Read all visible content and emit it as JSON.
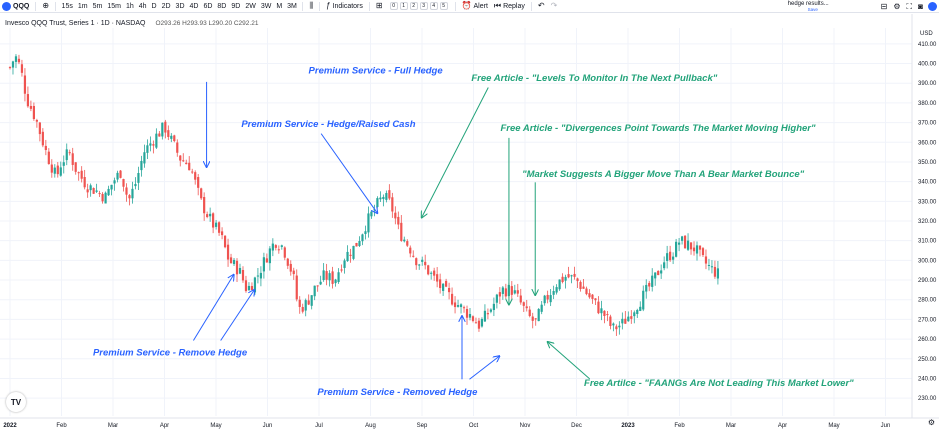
{
  "toolbar": {
    "symbol": "QQQ",
    "intervals": [
      "15s",
      "1m",
      "5m",
      "15m",
      "1h",
      "4h",
      "D",
      "2D",
      "3D",
      "4D",
      "6D",
      "8D",
      "9D",
      "2W",
      "3W",
      "M",
      "3M"
    ],
    "indicators_label": "Indicators",
    "layout_numbers": [
      "0",
      "1",
      "2",
      "3",
      "4",
      "5"
    ],
    "alert_label": "Alert",
    "replay_label": "Replay",
    "layout_name": "hedge results...",
    "layout_save": "Save"
  },
  "legend": {
    "title": "Invesco QQQ Trust, Series 1 · 1D · NASDAQ",
    "ohlc": "O293.26 H293.93 L290.20 C292.21"
  },
  "chart_data": {
    "type": "candlestick",
    "ylim": [
      225,
      415
    ],
    "yticks": [
      230,
      240,
      250,
      260,
      270,
      280,
      290,
      300,
      310,
      320,
      330,
      340,
      350,
      360,
      370,
      380,
      390,
      400,
      410
    ],
    "ytick_labels": [
      "230.00",
      "240.00",
      "250.00",
      "260.00",
      "270.00",
      "280.00",
      "290.00",
      "300.00",
      "310.00",
      "320.00",
      "330.00",
      "340.00",
      "350.00",
      "360.00",
      "370.00",
      "380.00",
      "390.00",
      "400.00",
      "410.00"
    ],
    "ylabel": "USD",
    "xticks": [
      {
        "label": "2022",
        "month": 0,
        "bold": true
      },
      {
        "label": "Feb",
        "month": 1
      },
      {
        "label": "Mar",
        "month": 2
      },
      {
        "label": "Apr",
        "month": 3
      },
      {
        "label": "May",
        "month": 4
      },
      {
        "label": "Jun",
        "month": 5
      },
      {
        "label": "Jul",
        "month": 6
      },
      {
        "label": "Aug",
        "month": 7
      },
      {
        "label": "Sep",
        "month": 8
      },
      {
        "label": "Oct",
        "month": 9
      },
      {
        "label": "Nov",
        "month": 10
      },
      {
        "label": "Dec",
        "month": 11
      },
      {
        "label": "2023",
        "month": 12,
        "bold": true
      },
      {
        "label": "Feb",
        "month": 13
      },
      {
        "label": "Mar",
        "month": 14
      },
      {
        "label": "Apr",
        "month": 15
      },
      {
        "label": "May",
        "month": 16
      },
      {
        "label": "Jun",
        "month": 17
      }
    ],
    "close_path": [
      [
        0.0,
        398
      ],
      [
        0.1,
        404
      ],
      [
        0.2,
        398
      ],
      [
        0.33,
        382
      ],
      [
        0.5,
        372
      ],
      [
        0.7,
        355
      ],
      [
        0.9,
        342
      ],
      [
        1.0,
        350
      ],
      [
        1.15,
        355
      ],
      [
        1.3,
        345
      ],
      [
        1.5,
        338
      ],
      [
        1.7,
        335
      ],
      [
        1.85,
        332
      ],
      [
        2.0,
        340
      ],
      [
        2.15,
        345
      ],
      [
        2.3,
        330
      ],
      [
        2.45,
        340
      ],
      [
        2.6,
        355
      ],
      [
        2.8,
        362
      ],
      [
        3.0,
        368
      ],
      [
        3.15,
        360
      ],
      [
        3.3,
        352
      ],
      [
        3.5,
        348
      ],
      [
        3.7,
        330
      ],
      [
        3.9,
        320
      ],
      [
        4.1,
        312
      ],
      [
        4.25,
        300
      ],
      [
        4.45,
        295
      ],
      [
        4.6,
        285
      ],
      [
        4.8,
        292
      ],
      [
        5.0,
        303
      ],
      [
        5.15,
        310
      ],
      [
        5.3,
        307
      ],
      [
        5.5,
        292
      ],
      [
        5.6,
        275
      ],
      [
        5.75,
        278
      ],
      [
        5.9,
        285
      ],
      [
        6.1,
        292
      ],
      [
        6.3,
        290
      ],
      [
        6.5,
        302
      ],
      [
        6.7,
        307
      ],
      [
        6.9,
        318
      ],
      [
        7.1,
        327
      ],
      [
        7.25,
        333
      ],
      [
        7.4,
        328
      ],
      [
        7.55,
        315
      ],
      [
        7.75,
        307
      ],
      [
        7.9,
        300
      ],
      [
        8.05,
        297
      ],
      [
        8.2,
        292
      ],
      [
        8.4,
        285
      ],
      [
        8.6,
        280
      ],
      [
        8.8,
        275
      ],
      [
        8.95,
        272
      ],
      [
        9.1,
        267
      ],
      [
        9.25,
        272
      ],
      [
        9.4,
        278
      ],
      [
        9.55,
        285
      ],
      [
        9.75,
        285
      ],
      [
        9.9,
        279
      ],
      [
        10.05,
        272
      ],
      [
        10.2,
        268
      ],
      [
        10.4,
        280
      ],
      [
        10.6,
        288
      ],
      [
        10.8,
        292
      ],
      [
        11.0,
        290
      ],
      [
        11.15,
        285
      ],
      [
        11.35,
        278
      ],
      [
        11.55,
        272
      ],
      [
        11.7,
        265
      ],
      [
        11.9,
        268
      ],
      [
        12.1,
        275
      ],
      [
        12.3,
        282
      ],
      [
        12.5,
        290
      ],
      [
        12.7,
        300
      ],
      [
        12.9,
        305
      ],
      [
        13.0,
        310
      ],
      [
        13.15,
        308
      ],
      [
        13.3,
        306
      ],
      [
        13.45,
        300
      ],
      [
        13.6,
        296
      ],
      [
        13.75,
        293
      ]
    ],
    "hedge_closed_start": 3.55,
    "hedge_closed_end": 7.2,
    "annotations": [
      {
        "text": "Premium Service - Full Hedge",
        "color": "blue",
        "x": 0.4,
        "y": 0.17,
        "anchor": "center"
      },
      {
        "text": "Premium Service - Hedge/Raised Cash",
        "color": "blue",
        "x": 0.257,
        "y": 0.295,
        "anchor": "start"
      },
      {
        "text": "Premium Service - Remove Hedge",
        "color": "blue",
        "x": 0.099,
        "y": 0.825,
        "anchor": "start"
      },
      {
        "text": "Premium Service - Removed Hedge",
        "color": "blue",
        "x": 0.338,
        "y": 0.917,
        "anchor": "start"
      },
      {
        "text": "Free Article - \"Levels To Monitor In The Next Pullback\"",
        "color": "green",
        "x": 0.502,
        "y": 0.188,
        "anchor": "start"
      },
      {
        "text": "Free Article - \"Divergences Point Towards The Market Moving Higher\"",
        "color": "green",
        "x": 0.533,
        "y": 0.304,
        "anchor": "start"
      },
      {
        "text": "\"Market Suggests A Bigger Move Than A Bear Market Bounce\"",
        "color": "green",
        "x": 0.556,
        "y": 0.411,
        "anchor": "start"
      },
      {
        "text": "Free Artilce - \"FAANGs Are Not Leading This Market Lower\"",
        "color": "green",
        "x": 0.622,
        "y": 0.896,
        "anchor": "start"
      }
    ],
    "arrows": [
      {
        "color": "blue",
        "x1": 0.22,
        "y1": 0.19,
        "x2": 0.22,
        "y2": 0.388
      },
      {
        "color": "blue",
        "x1": 0.342,
        "y1": 0.31,
        "x2": 0.402,
        "y2": 0.495
      },
      {
        "color": "blue",
        "x1": 0.206,
        "y1": 0.79,
        "x2": 0.249,
        "y2": 0.637
      },
      {
        "color": "blue",
        "x1": 0.235,
        "y1": 0.79,
        "x2": 0.271,
        "y2": 0.672
      },
      {
        "color": "blue",
        "x1": 0.492,
        "y1": 0.88,
        "x2": 0.492,
        "y2": 0.733
      },
      {
        "color": "blue",
        "x1": 0.5,
        "y1": 0.88,
        "x2": 0.532,
        "y2": 0.826
      },
      {
        "color": "green",
        "x1": 0.52,
        "y1": 0.203,
        "x2": 0.449,
        "y2": 0.505
      },
      {
        "color": "green",
        "x1": 0.542,
        "y1": 0.32,
        "x2": 0.542,
        "y2": 0.707
      },
      {
        "color": "green",
        "x1": 0.57,
        "y1": 0.423,
        "x2": 0.57,
        "y2": 0.685
      },
      {
        "color": "green",
        "x1": 0.628,
        "y1": 0.879,
        "x2": 0.583,
        "y2": 0.793
      }
    ]
  },
  "colors": {
    "up": "#26a69a",
    "down": "#ef5350",
    "blue": "#2962ff",
    "green": "#22a37a",
    "grid": "#f0f3fa"
  },
  "tv_logo": "TV"
}
